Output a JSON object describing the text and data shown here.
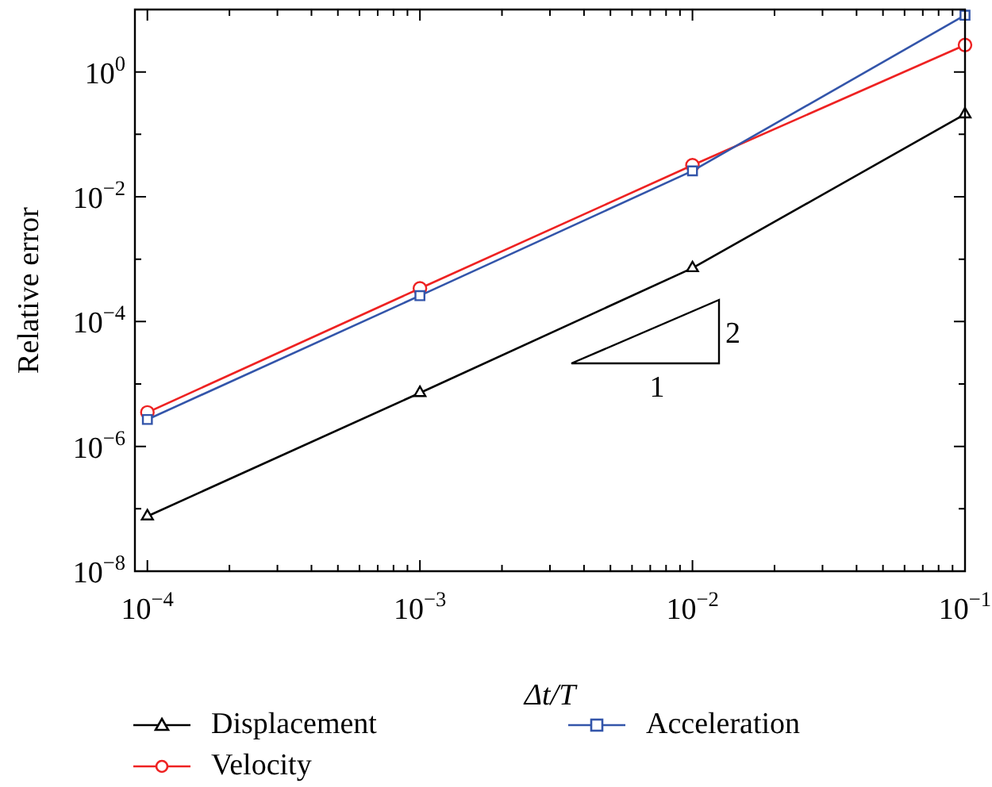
{
  "chart_data": {
    "type": "line",
    "xlabel": "Δt/T",
    "ylabel": "Relative error",
    "log": "xy",
    "grid": false,
    "legend": "bottom",
    "line_style": "solid",
    "x": [
      0.0001,
      0.001,
      0.01,
      0.1
    ],
    "series": [
      {
        "name": "Displacement",
        "color": "#000000",
        "marker": "triangle",
        "values": [
          7.6e-08,
          7.2e-06,
          0.00072,
          0.21
        ]
      },
      {
        "name": "Velocity",
        "color": "#ee2222",
        "marker": "circle",
        "values": [
          3.5e-06,
          0.00034,
          0.032,
          2.7
        ]
      },
      {
        "name": "Acceleration",
        "color": "#3355aa",
        "marker": "square",
        "values": [
          2.7e-06,
          0.00026,
          0.026,
          8.1
        ]
      }
    ],
    "xlim": [
      9e-05,
      0.1
    ],
    "ylim": [
      1e-08,
      10
    ],
    "xticks": [
      {
        "value": 0.0001,
        "label": "10$^{−4}$"
      },
      {
        "value": 0.0002,
        "label": null
      },
      {
        "value": 0.0003,
        "label": null
      },
      {
        "value": 0.0004,
        "label": null
      },
      {
        "value": 0.0005,
        "label": null
      },
      {
        "value": 0.0006,
        "label": null
      },
      {
        "value": 0.0007,
        "label": null
      },
      {
        "value": 0.0008,
        "label": null
      },
      {
        "value": 0.0009,
        "label": null
      },
      {
        "value": 0.001,
        "label": "10$^{−3}$"
      },
      {
        "value": 0.002,
        "label": null
      },
      {
        "value": 0.003,
        "label": null
      },
      {
        "value": 0.004,
        "label": null
      },
      {
        "value": 0.005,
        "label": null
      },
      {
        "value": 0.006,
        "label": null
      },
      {
        "value": 0.007,
        "label": null
      },
      {
        "value": 0.008,
        "label": null
      },
      {
        "value": 0.009,
        "label": null
      },
      {
        "value": 0.01,
        "label": "10$^{−2}$"
      },
      {
        "value": 0.02,
        "label": null
      },
      {
        "value": 0.03,
        "label": null
      },
      {
        "value": 0.04,
        "label": null
      },
      {
        "value": 0.05,
        "label": null
      },
      {
        "value": 0.06,
        "label": null
      },
      {
        "value": 0.07,
        "label": null
      },
      {
        "value": 0.08,
        "label": null
      },
      {
        "value": 0.09,
        "label": null
      },
      {
        "value": 0.1,
        "label": "10$^{−1}$"
      }
    ],
    "yticks": [
      {
        "value": 1e-08,
        "label": "10$^{−8}$"
      },
      {
        "value": 1e-07,
        "label": null
      },
      {
        "value": 1e-06,
        "label": "10$^{−6}$"
      },
      {
        "value": 1e-05,
        "label": null
      },
      {
        "value": 0.0001,
        "label": "10$^{−4}$"
      },
      {
        "value": 0.001,
        "label": null
      },
      {
        "value": 0.01,
        "label": "10$^{−2}$"
      },
      {
        "value": 0.1,
        "label": null
      },
      {
        "value": 1,
        "label": "10$^{0}$"
      },
      {
        "value": 10,
        "label": null
      }
    ],
    "annotations": [
      "1",
      "2"
    ]
  }
}
